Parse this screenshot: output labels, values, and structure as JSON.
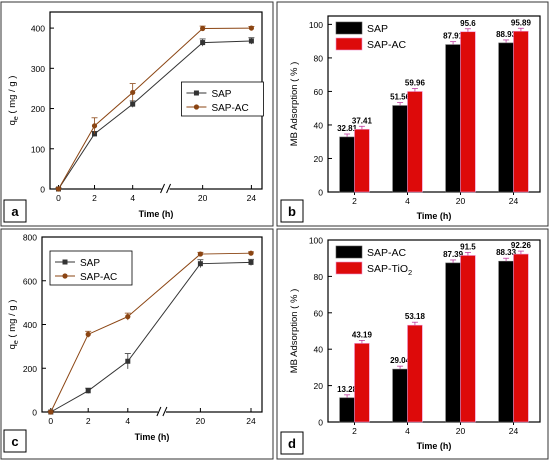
{
  "chart_data": [
    {
      "panel": "a",
      "type": "line",
      "ylabel": "q",
      "ylabel_sub": "e",
      "ylabel_unit": "( mg / g )",
      "xlabel": "Time (h)",
      "x_ticks": [
        "0",
        "2",
        "4",
        "20",
        "24"
      ],
      "y_ticks": [
        "0",
        "100",
        "200",
        "300",
        "400"
      ],
      "ylim": [
        0,
        440
      ],
      "x_break": true,
      "legend": "center-right",
      "series": [
        {
          "name": "SAP",
          "color": "#333333",
          "marker": "square",
          "x": [
            0,
            2,
            4,
            20,
            24
          ],
          "y": [
            0,
            137,
            211,
            364,
            368
          ],
          "err": [
            3,
            6,
            8,
            9,
            8
          ]
        },
        {
          "name": "SAP-AC",
          "color": "#8b4513",
          "marker": "circle",
          "x": [
            0,
            2,
            4,
            20,
            24
          ],
          "y": [
            0,
            157,
            240,
            399,
            400
          ],
          "err": [
            3,
            20,
            22,
            6,
            4
          ]
        }
      ]
    },
    {
      "panel": "b",
      "type": "bar",
      "ylabel": "MB Adsorption ( % )",
      "xlabel": "Time (h)",
      "categories": [
        "2",
        "4",
        "20",
        "24"
      ],
      "y_ticks": [
        "0",
        "20",
        "40",
        "60",
        "80",
        "100"
      ],
      "ylim": [
        0,
        105
      ],
      "legend": "top-left",
      "series": [
        {
          "name": "SAP",
          "color": "#000000",
          "values": [
            32.81,
            51.56,
            87.91,
            88.93
          ],
          "labels": [
            "32.81",
            "51.56",
            "87.91",
            "88.93"
          ]
        },
        {
          "name": "SAP-AC",
          "color": "#dd0a0a",
          "values": [
            37.41,
            59.96,
            95.6,
            95.89
          ],
          "labels": [
            "37.41",
            "59.96",
            "95.6",
            "95.89"
          ]
        }
      ]
    },
    {
      "panel": "c",
      "type": "line",
      "ylabel": "q",
      "ylabel_sub": "e",
      "ylabel_unit": "( mg / g )",
      "xlabel": "Time (h)",
      "x_ticks": [
        "0",
        "2",
        "4",
        "20",
        "24"
      ],
      "y_ticks": [
        "0",
        "200",
        "400",
        "600",
        "800"
      ],
      "ylim": [
        0,
        800
      ],
      "x_break": true,
      "legend": "top-left",
      "series": [
        {
          "name": "SAP",
          "color": "#333333",
          "marker": "square",
          "x": [
            0,
            2,
            4,
            20,
            24
          ],
          "y": [
            0,
            97,
            232,
            678,
            684
          ],
          "err": [
            4,
            12,
            35,
            18,
            14
          ]
        },
        {
          "name": "SAP-AC",
          "color": "#8b4513",
          "marker": "circle",
          "x": [
            0,
            2,
            4,
            20,
            24
          ],
          "y": [
            0,
            355,
            436,
            722,
            726
          ],
          "err": [
            4,
            14,
            16,
            8,
            6
          ]
        }
      ]
    },
    {
      "panel": "d",
      "type": "bar",
      "ylabel": "MB Adsorption ( % )",
      "xlabel": "Time (h)",
      "categories": [
        "2",
        "4",
        "20",
        "24"
      ],
      "y_ticks": [
        "0",
        "20",
        "40",
        "60",
        "80",
        "100"
      ],
      "ylim": [
        0,
        100
      ],
      "legend": "top-left",
      "series": [
        {
          "name": "SAP-AC",
          "color": "#000000",
          "values": [
            13.28,
            29.04,
            87.39,
            88.33
          ],
          "labels": [
            "13.28",
            "29.04",
            "87.39",
            "88.33"
          ]
        },
        {
          "name": "SAP-TiO",
          "name_sub": "2",
          "color": "#dd0a0a",
          "values": [
            43.19,
            53.18,
            91.5,
            92.26
          ],
          "labels": [
            "43.19",
            "53.18",
            "91.5",
            "92.26"
          ]
        }
      ]
    }
  ]
}
